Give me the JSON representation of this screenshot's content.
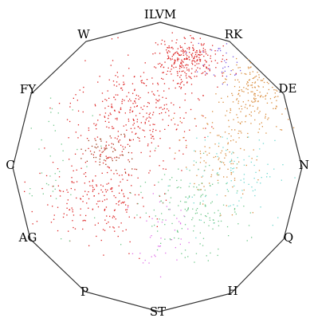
{
  "figure": {
    "vertex_labels": [
      "ILVM",
      "RK",
      "DE",
      "N",
      "Q",
      "H",
      "ST",
      "P",
      "AG",
      "C",
      "FY",
      "W"
    ],
    "colors": {
      "outline": "#333333",
      "hydrophobic": "#dd2222",
      "aromatic": "#9b3a1a",
      "charged": "#d98c3c",
      "polar_cyan": "#6fd9d0",
      "polar_green": "#6fc88a",
      "special_magenta": "#e070e8",
      "special_purple": "#7b5ae0"
    }
  }
}
